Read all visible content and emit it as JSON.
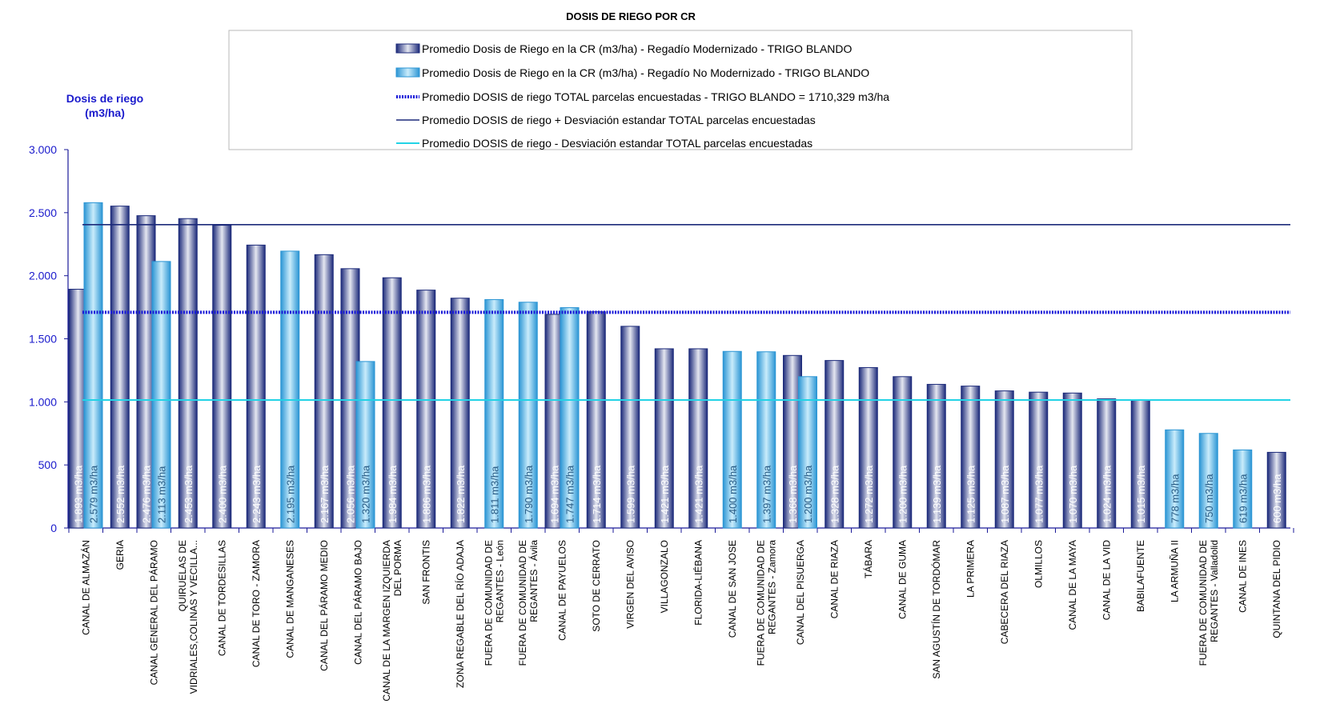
{
  "chart_data": {
    "type": "bar",
    "title": "DOSIS DE RIEGO POR CR",
    "ylabel_lines": [
      "Dosis de riego",
      "(m3/ha)"
    ],
    "ylim": [
      0,
      3000
    ],
    "yticks": [
      0,
      500,
      1000,
      1500,
      2000,
      2500,
      3000
    ],
    "ytick_labels": [
      "0",
      "500",
      "1.000",
      "1.500",
      "2.000",
      "2.500",
      "3.000"
    ],
    "grid": false,
    "legend_position": "top",
    "unit_suffix": " m3/ha",
    "categories": [
      [
        "CANAL DE ALMAZÁN"
      ],
      [
        "GERIA"
      ],
      [
        "CANAL GENERAL DEL PÁRAMO"
      ],
      [
        "QUIRUELAS DE",
        "VIDRIALES,COLINAS Y VECILLA..."
      ],
      [
        "CANAL DE TORDESILLAS"
      ],
      [
        "CANAL DE TORO - ZAMORA"
      ],
      [
        "CANAL DE MANGANESES"
      ],
      [
        "CANAL DEL PÁRAMO MEDIO"
      ],
      [
        "CANAL DEL PÁRAMO BAJO"
      ],
      [
        "CANAL DE LA MARGEN IZQUIERDA",
        "DEL PORMA"
      ],
      [
        "SAN FRONTIS"
      ],
      [
        "ZONA REGABLE DEL RÍO ADAJA"
      ],
      [
        "FUERA DE COMUNIDAD DE",
        "REGANTES - León"
      ],
      [
        "FUERA DE COMUNIDAD DE",
        "REGANTES - Ávila"
      ],
      [
        "CANAL DE PAYUELOS"
      ],
      [
        "SOTO DE CERRATO"
      ],
      [
        "VIRGEN DEL AVISO"
      ],
      [
        "VILLAGONZALO"
      ],
      [
        "FLORIDA-LIÉBANA"
      ],
      [
        "CANAL DE SAN JOSE"
      ],
      [
        "FUERA DE COMUNIDAD DE",
        "REGANTES - Zamora"
      ],
      [
        "CANAL DEL PISUERGA"
      ],
      [
        "CANAL DE RIAZA"
      ],
      [
        "TÁBARA"
      ],
      [
        "CANAL DE GUMA"
      ],
      [
        "SAN AGUSTÍN DE TORDÓMAR"
      ],
      [
        "LA PRIMERA"
      ],
      [
        "CABECERA DEL RIAZA"
      ],
      [
        "OLMILLOS"
      ],
      [
        "CANAL DE LA MAYA"
      ],
      [
        "CANAL DE LA VID"
      ],
      [
        "BABILAFUENTE"
      ],
      [
        "LA ARMUÑA II"
      ],
      [
        "FUERA DE COMUNIDAD DE",
        "REGANTES - Valladolid"
      ],
      [
        "CANAL DE INES"
      ],
      [
        "QUINTANA DEL PIDIO"
      ]
    ],
    "series": [
      {
        "name": "Promedio Dosis de Riego en la CR (m3/ha) - Regadío Modernizado - TRIGO BLANDO",
        "color": "#1c2a7a",
        "values": [
          1893,
          2552,
          2476,
          2453,
          2400,
          2243,
          null,
          2167,
          2056,
          1984,
          1886,
          1822,
          null,
          null,
          1694,
          1714,
          1599,
          1421,
          1421,
          null,
          null,
          1368,
          1328,
          1272,
          1200,
          1139,
          1125,
          1087,
          1077,
          1070,
          1024,
          1015,
          null,
          null,
          null,
          600
        ],
        "labels": [
          "1.893",
          "2.552",
          "2.476",
          "2.453",
          "2.400",
          "2.243",
          null,
          "2.167",
          "2.056",
          "1.984",
          "1.886",
          "1.822",
          null,
          null,
          "1.694",
          "1.714",
          "1.599",
          "1.421",
          "1.421",
          null,
          null,
          "1.368",
          "1.328",
          "1.272",
          "1.200",
          "1.139",
          "1.125",
          "1.087",
          "1.077",
          "1.070",
          "1.024",
          "1.015",
          null,
          null,
          null,
          "600"
        ]
      },
      {
        "name": "Promedio Dosis de Riego en la CR (m3/ha) - Regadío No Modernizado - TRIGO BLANDO",
        "color": "#3aa7e6",
        "values": [
          2579,
          null,
          2113,
          null,
          null,
          null,
          2195,
          null,
          1320,
          null,
          null,
          null,
          1811,
          1790,
          1747,
          null,
          null,
          null,
          null,
          1400,
          1397,
          1200,
          null,
          null,
          null,
          null,
          null,
          null,
          null,
          null,
          null,
          null,
          778,
          750,
          619,
          null
        ],
        "labels": [
          "2.579",
          null,
          "2.113",
          null,
          null,
          null,
          "2.195",
          null,
          "1.320",
          null,
          null,
          null,
          "1.811",
          "1.790",
          "1.747",
          null,
          null,
          null,
          null,
          "1.400",
          "1.397",
          "1.200",
          null,
          null,
          null,
          null,
          null,
          null,
          null,
          null,
          null,
          null,
          "778",
          "750",
          "619",
          null
        ]
      }
    ],
    "reference_lines": [
      {
        "name": "Promedio DOSIS de riego TOTAL parcelas encuestadas - TRIGO BLANDO = 1710,329 m3/ha",
        "value": 1710.329,
        "color": "#1a1ad8",
        "style": "dotted-thick"
      },
      {
        "name": "Promedio DOSIS de riego + Desviación estandar TOTAL parcelas encuestadas",
        "value": 2405,
        "color": "#1c2a7a",
        "style": "solid"
      },
      {
        "name": "Promedio DOSIS de riego - Desviación estandar TOTAL parcelas encuestadas",
        "value": 1015,
        "color": "#22d3e6",
        "style": "solid"
      }
    ]
  }
}
